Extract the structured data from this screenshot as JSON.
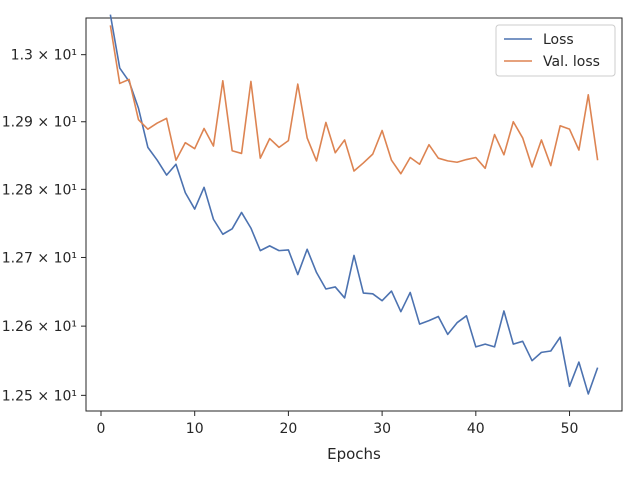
{
  "chart_data": {
    "type": "line",
    "title": "",
    "xlabel": "Epochs",
    "ylabel": "",
    "yscale": "log",
    "xlim": [
      -1.6,
      55.6
    ],
    "ylim": [
      12.4775,
      13.055
    ],
    "x_ticks": [
      0,
      10,
      20,
      30,
      40,
      50
    ],
    "x_tick_labels": [
      "0",
      "10",
      "20",
      "30",
      "40",
      "50"
    ],
    "y_ticks": [
      12.5,
      12.6,
      12.7,
      12.8,
      12.9,
      13.0
    ],
    "y_tick_labels": [
      "1.25 × 10¹",
      "1.26 × 10¹",
      "1.27 × 10¹",
      "1.28 × 10¹",
      "1.29 × 10¹",
      "1.3 × 10¹"
    ],
    "grid": false,
    "legend_position": "top-right",
    "x": [
      1,
      2,
      3,
      4,
      5,
      6,
      7,
      8,
      9,
      10,
      11,
      12,
      13,
      14,
      15,
      16,
      17,
      18,
      19,
      20,
      21,
      22,
      23,
      24,
      25,
      26,
      27,
      28,
      29,
      30,
      31,
      32,
      33,
      34,
      35,
      36,
      37,
      38,
      39,
      40,
      41,
      42,
      43,
      44,
      45,
      46,
      47,
      48,
      49,
      50,
      51,
      52,
      53
    ],
    "series": [
      {
        "name": "Loss",
        "color": "#4c72b0",
        "values": [
          13.06,
          12.98,
          12.96,
          12.92,
          12.862,
          12.843,
          12.821,
          12.837,
          12.795,
          12.771,
          12.803,
          12.756,
          12.734,
          12.742,
          12.766,
          12.743,
          12.71,
          12.717,
          12.71,
          12.711,
          12.675,
          12.712,
          12.678,
          12.654,
          12.657,
          12.641,
          12.703,
          12.648,
          12.647,
          12.637,
          12.651,
          12.621,
          12.649,
          12.603,
          12.608,
          12.614,
          12.588,
          12.605,
          12.615,
          12.57,
          12.574,
          12.57,
          12.622,
          12.574,
          12.578,
          12.55,
          12.562,
          12.564,
          12.584,
          12.513,
          12.548,
          12.502,
          12.54
        ]
      },
      {
        "name": "Val. loss",
        "color": "#dd8452",
        "values": [
          13.044,
          12.957,
          12.963,
          12.903,
          12.889,
          12.898,
          12.905,
          12.843,
          12.869,
          12.86,
          12.89,
          12.864,
          12.961,
          12.857,
          12.853,
          12.96,
          12.846,
          12.875,
          12.862,
          12.872,
          12.956,
          12.876,
          12.842,
          12.899,
          12.854,
          12.873,
          12.827,
          12.839,
          12.852,
          12.887,
          12.843,
          12.823,
          12.847,
          12.837,
          12.866,
          12.846,
          12.842,
          12.84,
          12.844,
          12.847,
          12.831,
          12.881,
          12.851,
          12.9,
          12.876,
          12.833,
          12.873,
          12.835,
          12.894,
          12.889,
          12.858,
          12.94,
          12.843
        ]
      }
    ]
  }
}
